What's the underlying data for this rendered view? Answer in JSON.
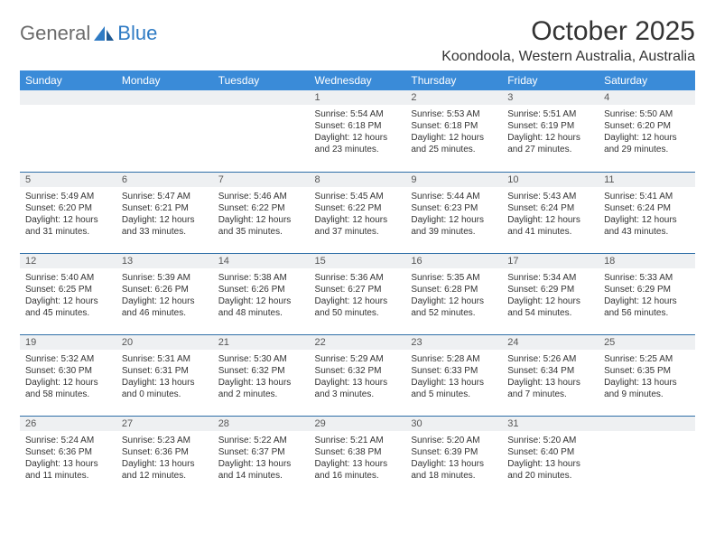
{
  "brand": {
    "gray": "General",
    "blue": "Blue"
  },
  "title": "October 2025",
  "location": "Koondoola, Western Australia, Australia",
  "colors": {
    "header_bg": "#3a8bd8",
    "header_text": "#ffffff",
    "daybar_bg": "#eef0f2",
    "rule": "#2f6fa8",
    "logo_gray": "#6b6b6b",
    "logo_blue": "#2f7bc4"
  },
  "day_names": [
    "Sunday",
    "Monday",
    "Tuesday",
    "Wednesday",
    "Thursday",
    "Friday",
    "Saturday"
  ],
  "weeks": [
    [
      null,
      null,
      null,
      {
        "n": "1",
        "sr": "5:54 AM",
        "ss": "6:18 PM",
        "dl": "12 hours and 23 minutes."
      },
      {
        "n": "2",
        "sr": "5:53 AM",
        "ss": "6:18 PM",
        "dl": "12 hours and 25 minutes."
      },
      {
        "n": "3",
        "sr": "5:51 AM",
        "ss": "6:19 PM",
        "dl": "12 hours and 27 minutes."
      },
      {
        "n": "4",
        "sr": "5:50 AM",
        "ss": "6:20 PM",
        "dl": "12 hours and 29 minutes."
      }
    ],
    [
      {
        "n": "5",
        "sr": "5:49 AM",
        "ss": "6:20 PM",
        "dl": "12 hours and 31 minutes."
      },
      {
        "n": "6",
        "sr": "5:47 AM",
        "ss": "6:21 PM",
        "dl": "12 hours and 33 minutes."
      },
      {
        "n": "7",
        "sr": "5:46 AM",
        "ss": "6:22 PM",
        "dl": "12 hours and 35 minutes."
      },
      {
        "n": "8",
        "sr": "5:45 AM",
        "ss": "6:22 PM",
        "dl": "12 hours and 37 minutes."
      },
      {
        "n": "9",
        "sr": "5:44 AM",
        "ss": "6:23 PM",
        "dl": "12 hours and 39 minutes."
      },
      {
        "n": "10",
        "sr": "5:43 AM",
        "ss": "6:24 PM",
        "dl": "12 hours and 41 minutes."
      },
      {
        "n": "11",
        "sr": "5:41 AM",
        "ss": "6:24 PM",
        "dl": "12 hours and 43 minutes."
      }
    ],
    [
      {
        "n": "12",
        "sr": "5:40 AM",
        "ss": "6:25 PM",
        "dl": "12 hours and 45 minutes."
      },
      {
        "n": "13",
        "sr": "5:39 AM",
        "ss": "6:26 PM",
        "dl": "12 hours and 46 minutes."
      },
      {
        "n": "14",
        "sr": "5:38 AM",
        "ss": "6:26 PM",
        "dl": "12 hours and 48 minutes."
      },
      {
        "n": "15",
        "sr": "5:36 AM",
        "ss": "6:27 PM",
        "dl": "12 hours and 50 minutes."
      },
      {
        "n": "16",
        "sr": "5:35 AM",
        "ss": "6:28 PM",
        "dl": "12 hours and 52 minutes."
      },
      {
        "n": "17",
        "sr": "5:34 AM",
        "ss": "6:29 PM",
        "dl": "12 hours and 54 minutes."
      },
      {
        "n": "18",
        "sr": "5:33 AM",
        "ss": "6:29 PM",
        "dl": "12 hours and 56 minutes."
      }
    ],
    [
      {
        "n": "19",
        "sr": "5:32 AM",
        "ss": "6:30 PM",
        "dl": "12 hours and 58 minutes."
      },
      {
        "n": "20",
        "sr": "5:31 AM",
        "ss": "6:31 PM",
        "dl": "13 hours and 0 minutes."
      },
      {
        "n": "21",
        "sr": "5:30 AM",
        "ss": "6:32 PM",
        "dl": "13 hours and 2 minutes."
      },
      {
        "n": "22",
        "sr": "5:29 AM",
        "ss": "6:32 PM",
        "dl": "13 hours and 3 minutes."
      },
      {
        "n": "23",
        "sr": "5:28 AM",
        "ss": "6:33 PM",
        "dl": "13 hours and 5 minutes."
      },
      {
        "n": "24",
        "sr": "5:26 AM",
        "ss": "6:34 PM",
        "dl": "13 hours and 7 minutes."
      },
      {
        "n": "25",
        "sr": "5:25 AM",
        "ss": "6:35 PM",
        "dl": "13 hours and 9 minutes."
      }
    ],
    [
      {
        "n": "26",
        "sr": "5:24 AM",
        "ss": "6:36 PM",
        "dl": "13 hours and 11 minutes."
      },
      {
        "n": "27",
        "sr": "5:23 AM",
        "ss": "6:36 PM",
        "dl": "13 hours and 12 minutes."
      },
      {
        "n": "28",
        "sr": "5:22 AM",
        "ss": "6:37 PM",
        "dl": "13 hours and 14 minutes."
      },
      {
        "n": "29",
        "sr": "5:21 AM",
        "ss": "6:38 PM",
        "dl": "13 hours and 16 minutes."
      },
      {
        "n": "30",
        "sr": "5:20 AM",
        "ss": "6:39 PM",
        "dl": "13 hours and 18 minutes."
      },
      {
        "n": "31",
        "sr": "5:20 AM",
        "ss": "6:40 PM",
        "dl": "13 hours and 20 minutes."
      },
      null
    ]
  ],
  "labels": {
    "sunrise": "Sunrise:",
    "sunset": "Sunset:",
    "daylight": "Daylight:"
  }
}
